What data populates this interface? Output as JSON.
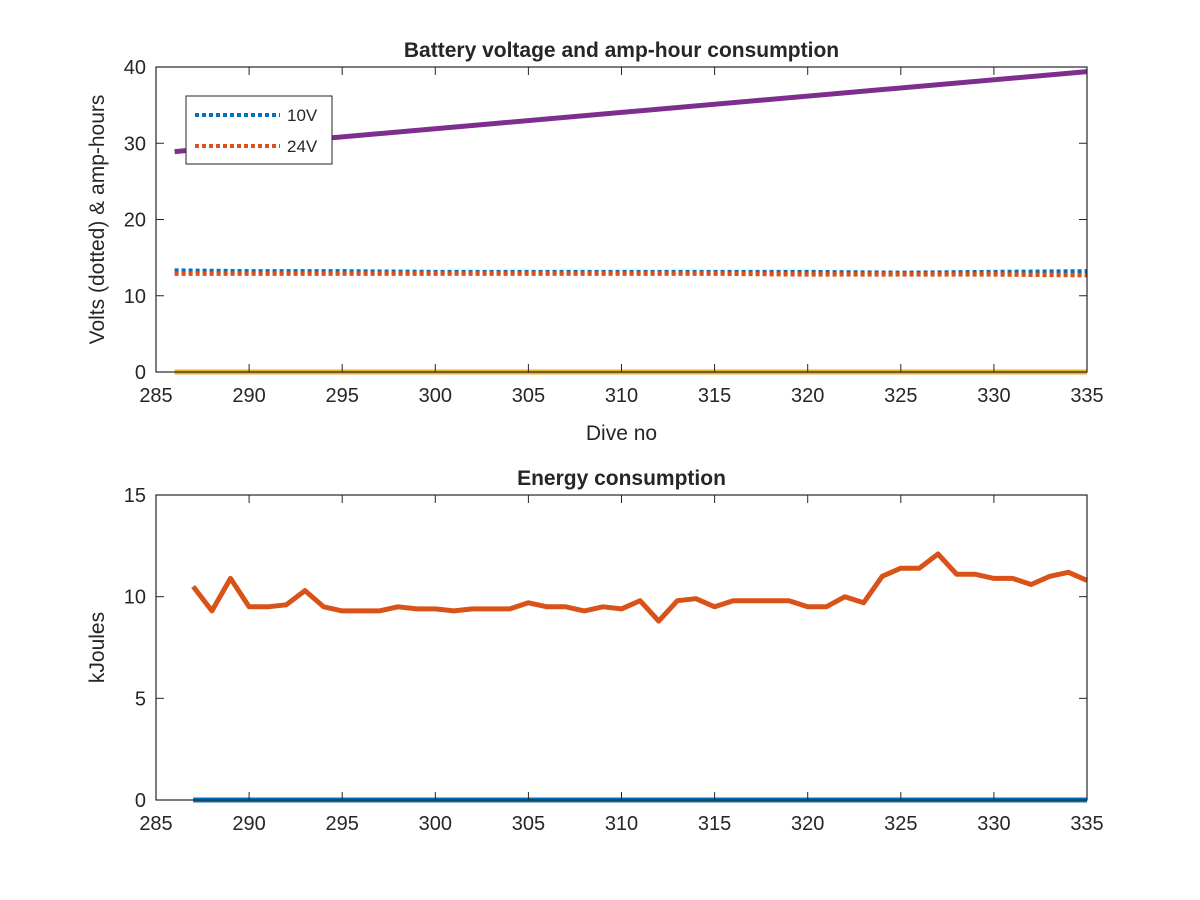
{
  "colors": {
    "blue": "#0072BD",
    "orange": "#D95319",
    "yellow": "#EDB120",
    "purple": "#7E2F8E"
  },
  "chart_data": [
    {
      "type": "line",
      "title": "Battery voltage and amp-hour consumption",
      "xlabel": "Dive no",
      "ylabel": "Volts (dotted) & amp-hours",
      "xlim": [
        285,
        335
      ],
      "ylim": [
        0,
        40
      ],
      "xticks": [
        "285",
        "290",
        "295",
        "300",
        "305",
        "310",
        "315",
        "320",
        "325",
        "330",
        "335"
      ],
      "yticks": [
        "0",
        "10",
        "20",
        "30",
        "40"
      ],
      "grid": false,
      "legend_position": "top-left",
      "series": [
        {
          "name": "10V",
          "style": "dotted",
          "color": "#0072BD",
          "x": [
            286,
            290,
            295,
            300,
            305,
            310,
            315,
            320,
            325,
            330,
            335
          ],
          "y": [
            13.3,
            13.2,
            13.2,
            13.1,
            13.1,
            13.1,
            13.1,
            13.1,
            13.0,
            13.1,
            13.2
          ]
        },
        {
          "name": "24V",
          "style": "dotted",
          "color": "#D95319",
          "x": [
            286,
            290,
            295,
            300,
            305,
            310,
            315,
            320,
            325,
            330,
            335
          ],
          "y": [
            12.9,
            12.9,
            12.9,
            12.9,
            12.9,
            12.9,
            12.9,
            12.8,
            12.8,
            12.8,
            12.7
          ]
        },
        {
          "style": "solid",
          "color": "#EDB120",
          "x": [
            286,
            335
          ],
          "y": [
            0,
            0
          ]
        },
        {
          "style": "solid",
          "color": "#7E2F8E",
          "x": [
            286,
            335
          ],
          "y": [
            28.9,
            39.4
          ]
        }
      ]
    },
    {
      "type": "line",
      "title": "Energy consumption",
      "xlabel": "",
      "ylabel": "kJoules",
      "xlim": [
        285,
        335
      ],
      "ylim": [
        0,
        15
      ],
      "xticks": [
        "285",
        "290",
        "295",
        "300",
        "305",
        "310",
        "315",
        "320",
        "325",
        "330",
        "335"
      ],
      "yticks": [
        "0",
        "5",
        "10",
        "15"
      ],
      "grid": false,
      "series": [
        {
          "style": "solid",
          "color": "#D95319",
          "x": [
            287,
            288,
            289,
            290,
            291,
            292,
            293,
            294,
            295,
            296,
            297,
            298,
            299,
            300,
            301,
            302,
            303,
            304,
            305,
            306,
            307,
            308,
            309,
            310,
            311,
            312,
            313,
            314,
            315,
            316,
            317,
            318,
            319,
            320,
            321,
            322,
            323,
            324,
            325,
            326,
            327,
            328,
            329,
            330,
            331,
            332,
            333,
            334,
            335
          ],
          "y": [
            10.5,
            9.3,
            10.9,
            9.5,
            9.5,
            9.6,
            10.3,
            9.5,
            9.3,
            9.3,
            9.3,
            9.5,
            9.4,
            9.4,
            9.3,
            9.4,
            9.4,
            9.4,
            9.7,
            9.5,
            9.5,
            9.3,
            9.5,
            9.4,
            9.8,
            8.8,
            9.8,
            9.9,
            9.5,
            9.8,
            9.8,
            9.8,
            9.8,
            9.5,
            9.5,
            10.0,
            9.7,
            11.0,
            11.4,
            11.4,
            12.1,
            11.1,
            11.1,
            10.9,
            10.9,
            10.6,
            11.0,
            11.2,
            10.8
          ]
        },
        {
          "style": "solid",
          "color": "#0072BD",
          "x": [
            287,
            335
          ],
          "y": [
            0,
            0
          ]
        }
      ]
    }
  ]
}
